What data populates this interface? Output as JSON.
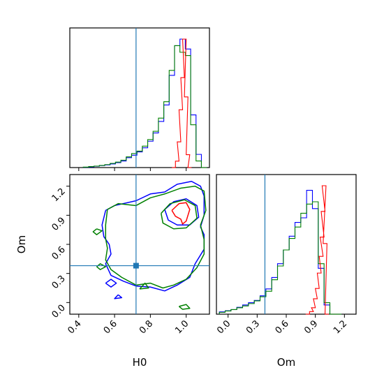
{
  "chart_data": [
    {
      "type": "histogram",
      "panel": "H0 marginal",
      "xlim": [
        0.35,
        1.13
      ],
      "truth": 0.72,
      "bins": [
        0.44,
        0.47,
        0.5,
        0.53,
        0.56,
        0.59,
        0.62,
        0.65,
        0.68,
        0.71,
        0.74,
        0.77,
        0.8,
        0.83,
        0.86,
        0.89,
        0.92,
        0.95,
        0.98,
        1.01,
        1.04,
        1.07,
        1.1
      ],
      "series": [
        {
          "color": "#0000ff",
          "values": [
            0.002,
            0.004,
            0.008,
            0.012,
            0.016,
            0.022,
            0.03,
            0.04,
            0.06,
            0.075,
            0.095,
            0.12,
            0.16,
            0.21,
            0.28,
            0.38,
            0.56,
            0.74,
            0.78,
            0.72,
            0.32,
            0.08,
            0
          ]
        },
        {
          "color": "#008000",
          "values": [
            0.003,
            0.006,
            0.009,
            0.013,
            0.018,
            0.025,
            0.033,
            0.045,
            0.065,
            0.085,
            0.1,
            0.13,
            0.17,
            0.22,
            0.3,
            0.4,
            0.59,
            0.74,
            0.7,
            0.68,
            0.26,
            0.04,
            0
          ]
        },
        {
          "color": "#ff0000",
          "values_note": "",
          "x": [
            0.93,
            0.95,
            0.96,
            0.97,
            0.98,
            0.99,
            1.0,
            1.01,
            1.02
          ],
          "values": [
            0,
            0.05,
            0.2,
            0.45,
            0.7,
            1.0,
            0.55,
            0.1,
            0
          ]
        }
      ]
    },
    {
      "type": "contour",
      "panel": "H0 vs Om",
      "xlim": [
        0.35,
        1.13
      ],
      "ylim": [
        -0.12,
        1.32
      ],
      "xlabel": "H0",
      "ylabel": "Om",
      "xticks": [
        "0.4",
        "0.6",
        "0.8",
        "1.0"
      ],
      "yticks": [
        "0.0",
        "0.3",
        "0.6",
        "0.9",
        "1.2"
      ],
      "truth": {
        "x": 0.72,
        "y": 0.38
      },
      "series": [
        {
          "color": "#0000ff",
          "contours": [
            [
              [
                0.55,
                0.95
              ],
              [
                0.6,
                1.0
              ],
              [
                0.72,
                1.05
              ],
              [
                0.8,
                1.12
              ],
              [
                0.88,
                1.14
              ],
              [
                0.95,
                1.22
              ],
              [
                1.03,
                1.25
              ],
              [
                1.08,
                1.2
              ],
              [
                1.1,
                1.1
              ],
              [
                1.1,
                0.9
              ],
              [
                1.08,
                0.78
              ],
              [
                1.1,
                0.7
              ],
              [
                1.1,
                0.55
              ],
              [
                1.05,
                0.4
              ],
              [
                1.02,
                0.26
              ],
              [
                0.95,
                0.18
              ],
              [
                0.88,
                0.12
              ],
              [
                0.8,
                0.16
              ],
              [
                0.72,
                0.17
              ],
              [
                0.65,
                0.22
              ],
              [
                0.58,
                0.28
              ],
              [
                0.55,
                0.4
              ],
              [
                0.58,
                0.5
              ],
              [
                0.57,
                0.6
              ],
              [
                0.54,
                0.68
              ],
              [
                0.53,
                0.8
              ],
              [
                0.55,
                0.95
              ]
            ],
            [
              [
                0.88,
                0.96
              ],
              [
                0.93,
                1.04
              ],
              [
                1.0,
                1.07
              ],
              [
                1.06,
                1.0
              ],
              [
                1.07,
                0.88
              ],
              [
                1.02,
                0.8
              ],
              [
                0.95,
                0.8
              ],
              [
                0.9,
                0.85
              ],
              [
                0.88,
                0.96
              ]
            ],
            [
              [
                0.55,
                0.2
              ],
              [
                0.58,
                0.24
              ],
              [
                0.61,
                0.2
              ],
              [
                0.58,
                0.16
              ],
              [
                0.55,
                0.2
              ]
            ],
            [
              [
                0.62,
                0.08
              ],
              [
                0.64,
                0.05
              ],
              [
                0.6,
                0.04
              ],
              [
                0.62,
                0.08
              ]
            ]
          ]
        },
        {
          "color": "#008000",
          "contours": [
            [
              [
                0.56,
                0.96
              ],
              [
                0.62,
                1.02
              ],
              [
                0.72,
                1.0
              ],
              [
                0.8,
                1.08
              ],
              [
                0.88,
                1.12
              ],
              [
                0.97,
                1.18
              ],
              [
                1.05,
                1.2
              ],
              [
                1.1,
                1.15
              ],
              [
                1.11,
                0.95
              ],
              [
                1.08,
                0.8
              ],
              [
                1.1,
                0.65
              ],
              [
                1.1,
                0.5
              ],
              [
                1.06,
                0.36
              ],
              [
                1.0,
                0.24
              ],
              [
                0.93,
                0.18
              ],
              [
                0.87,
                0.15
              ],
              [
                0.8,
                0.2
              ],
              [
                0.72,
                0.18
              ],
              [
                0.64,
                0.26
              ],
              [
                0.58,
                0.34
              ],
              [
                0.55,
                0.44
              ],
              [
                0.56,
                0.56
              ],
              [
                0.55,
                0.66
              ],
              [
                0.55,
                0.8
              ],
              [
                0.56,
                0.96
              ]
            ],
            [
              [
                0.86,
                0.92
              ],
              [
                0.91,
                1.02
              ],
              [
                0.99,
                1.06
              ],
              [
                1.05,
                1.0
              ],
              [
                1.06,
                0.87
              ],
              [
                1.0,
                0.77
              ],
              [
                0.93,
                0.76
              ],
              [
                0.87,
                0.82
              ],
              [
                0.86,
                0.92
              ]
            ],
            [
              [
                0.5,
                0.76
              ],
              [
                0.53,
                0.74
              ],
              [
                0.5,
                0.7
              ],
              [
                0.48,
                0.73
              ],
              [
                0.5,
                0.76
              ]
            ],
            [
              [
                0.5,
                0.37
              ],
              [
                0.52,
                0.4
              ],
              [
                0.55,
                0.37
              ],
              [
                0.52,
                0.34
              ],
              [
                0.5,
                0.37
              ]
            ],
            [
              [
                0.96,
                -0.04
              ],
              [
                1.0,
                -0.02
              ],
              [
                1.02,
                -0.06
              ],
              [
                0.98,
                -0.07
              ],
              [
                0.96,
                -0.04
              ]
            ],
            [
              [
                0.74,
                0.14
              ],
              [
                0.77,
                0.2
              ],
              [
                0.79,
                0.15
              ],
              [
                0.74,
                0.14
              ]
            ]
          ]
        },
        {
          "color": "#ff0000",
          "contours": [
            [
              [
                0.92,
                0.95
              ],
              [
                0.96,
                1.02
              ],
              [
                1.0,
                1.03
              ],
              [
                1.02,
                0.96
              ],
              [
                1.01,
                0.9
              ],
              [
                1.0,
                0.84
              ],
              [
                0.98,
                0.81
              ],
              [
                0.97,
                0.86
              ],
              [
                0.94,
                0.89
              ],
              [
                0.92,
                0.95
              ]
            ]
          ]
        }
      ]
    },
    {
      "type": "histogram",
      "panel": "Om marginal",
      "xlim": [
        -0.12,
        1.32
      ],
      "xlabel": "Om",
      "xticks": [
        "0.0",
        "0.3",
        "0.6",
        "0.9",
        "1.2"
      ],
      "truth": 0.38,
      "bins": [
        -0.06,
        0.0,
        0.06,
        0.12,
        0.18,
        0.24,
        0.3,
        0.36,
        0.42,
        0.48,
        0.54,
        0.6,
        0.66,
        0.72,
        0.78,
        0.84,
        0.9,
        0.96,
        1.02,
        1.08,
        1.14
      ],
      "series": [
        {
          "color": "#0000ff",
          "values": [
            0.01,
            0.015,
            0.02,
            0.03,
            0.04,
            0.05,
            0.06,
            0.08,
            0.11,
            0.16,
            0.22,
            0.28,
            0.34,
            0.4,
            0.42,
            0.54,
            0.46,
            0.2,
            0.04,
            0,
            0
          ]
        },
        {
          "color": "#008000",
          "values": [
            0.008,
            0.014,
            0.02,
            0.028,
            0.036,
            0.046,
            0.058,
            0.076,
            0.1,
            0.15,
            0.21,
            0.28,
            0.33,
            0.38,
            0.44,
            0.48,
            0.49,
            0.22,
            0.05,
            0,
            0
          ]
        },
        {
          "color": "#ff0000",
          "x": [
            0.82,
            0.86,
            0.88,
            0.9,
            0.92,
            0.94,
            0.96,
            0.97,
            0.98,
            0.99,
            1.0,
            1.02
          ],
          "values": [
            0,
            0.02,
            0.05,
            0.12,
            0.2,
            0.32,
            0.45,
            0.6,
            0.8,
            1.0,
            0.55,
            0
          ]
        }
      ]
    }
  ]
}
